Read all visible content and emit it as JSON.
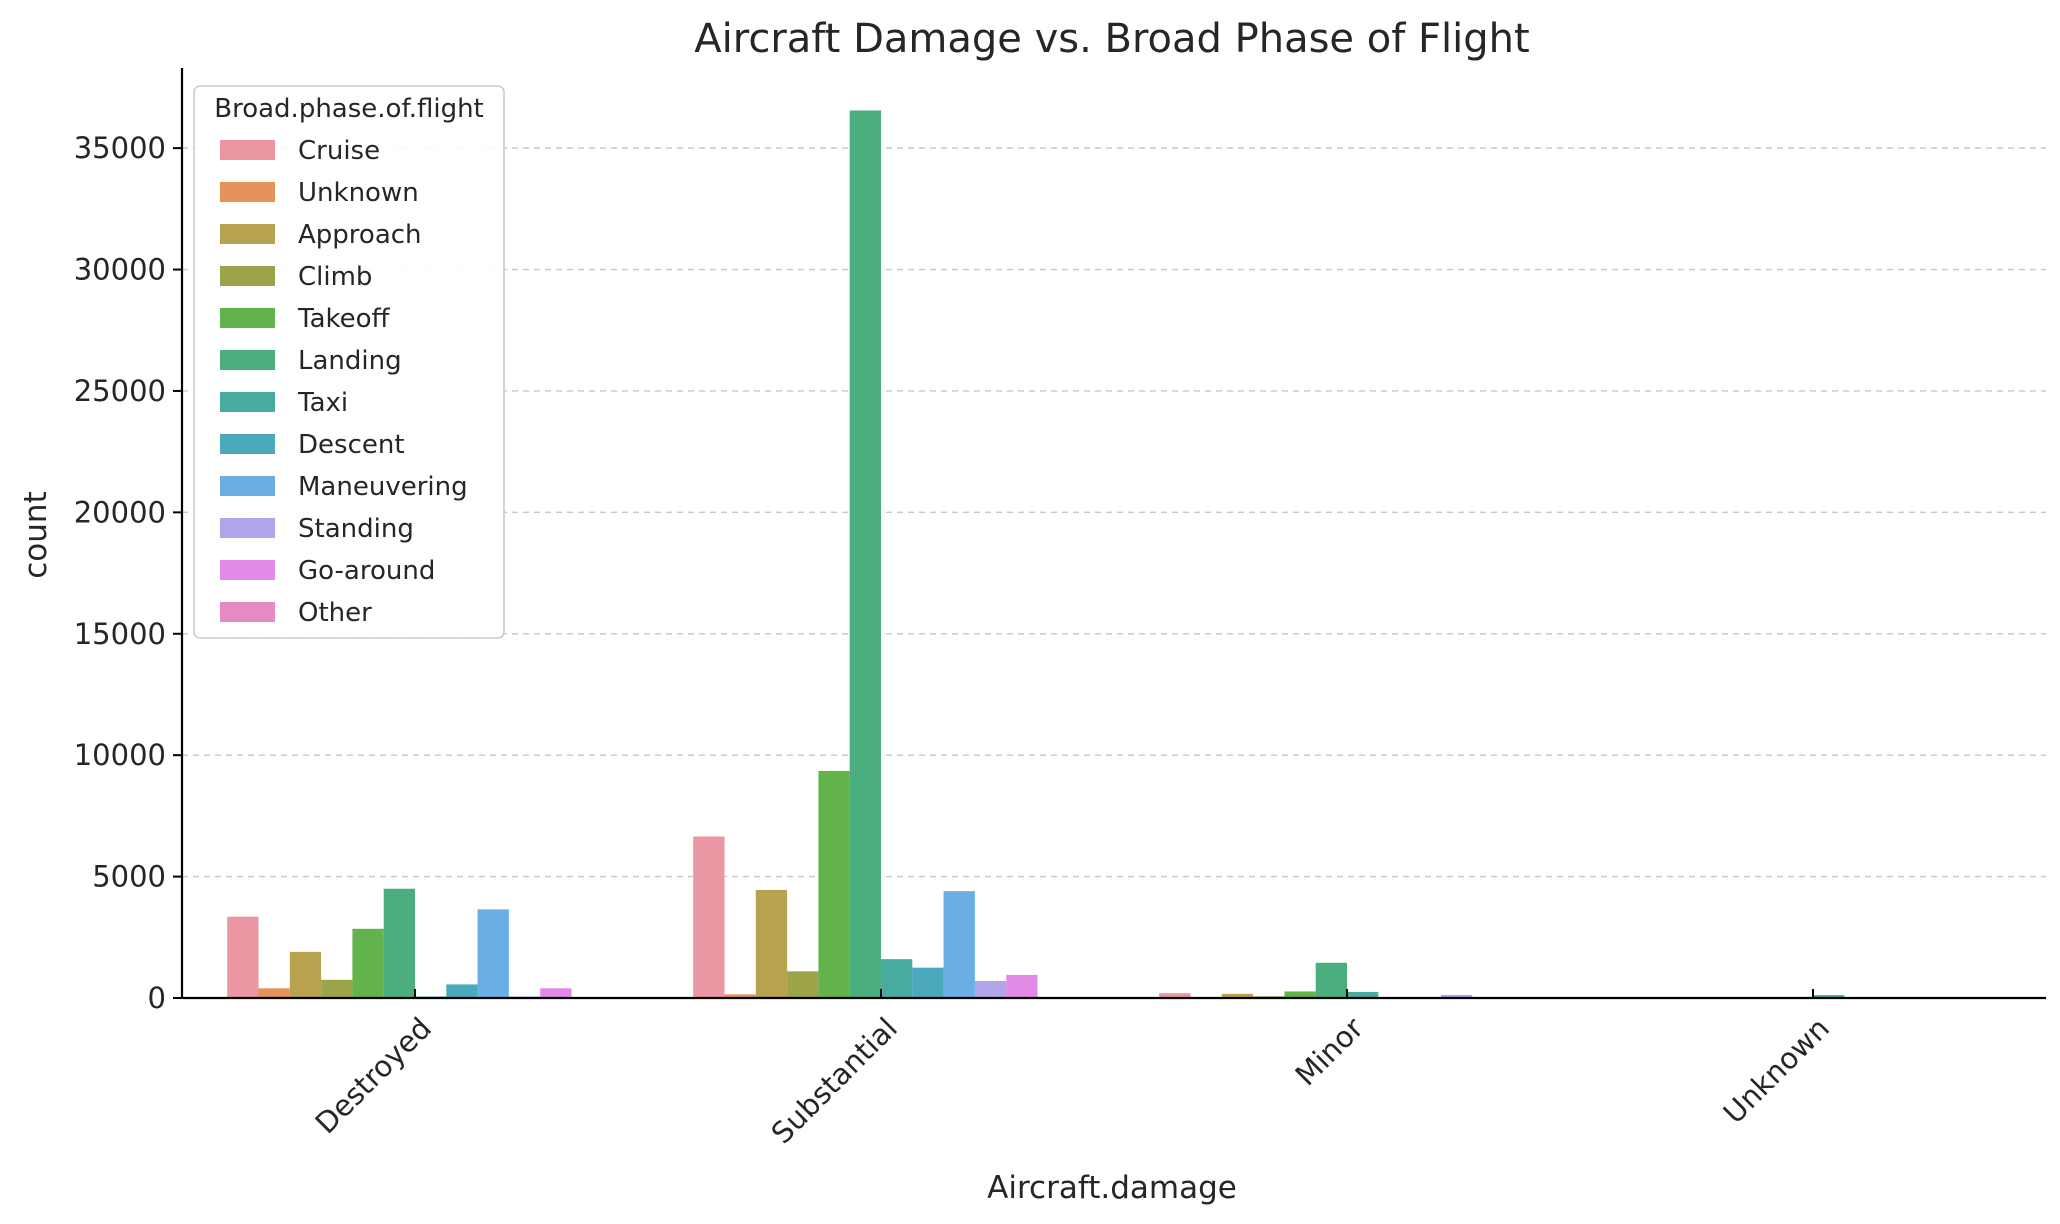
{
  "chart_data": {
    "type": "bar",
    "title": "Aircraft Damage vs. Broad Phase of Flight",
    "xlabel": "Aircraft.damage",
    "ylabel": "count",
    "categories": [
      "Destroyed",
      "Substantial",
      "Minor",
      "Unknown"
    ],
    "y_ticks": [
      "0",
      "5000",
      "10000",
      "15000",
      "20000",
      "25000",
      "30000",
      "35000"
    ],
    "ylim": [
      0,
      38300
    ],
    "grid": "horizontal dashed",
    "legend": {
      "title": "Broad.phase.of.flight",
      "placement": "top-left"
    },
    "series": [
      {
        "name": "Cruise",
        "color": "#ea96a3",
        "values": [
          3350,
          6650,
          200,
          0
        ]
      },
      {
        "name": "Unknown",
        "color": "#e5925b",
        "values": [
          400,
          150,
          0,
          0
        ]
      },
      {
        "name": "Approach",
        "color": "#b9a24d",
        "values": [
          1900,
          4450,
          170,
          0
        ]
      },
      {
        "name": "Climb",
        "color": "#9da348",
        "values": [
          750,
          1100,
          70,
          0
        ]
      },
      {
        "name": "Takeoff",
        "color": "#63b34c",
        "values": [
          2850,
          9350,
          270,
          0
        ]
      },
      {
        "name": "Landing",
        "color": "#4aae7f",
        "values": [
          4500,
          36550,
          1450,
          0
        ]
      },
      {
        "name": "Taxi",
        "color": "#47aba0",
        "values": [
          60,
          1600,
          250,
          120
        ]
      },
      {
        "name": "Descent",
        "color": "#4aa9bb",
        "values": [
          560,
          1250,
          40,
          0
        ]
      },
      {
        "name": "Maneuvering",
        "color": "#6aaee5",
        "values": [
          3650,
          4400,
          40,
          0
        ]
      },
      {
        "name": "Standing",
        "color": "#b3a5e9",
        "values": [
          60,
          700,
          130,
          0
        ]
      },
      {
        "name": "Go-around",
        "color": "#e38ae8",
        "values": [
          400,
          950,
          30,
          0
        ]
      },
      {
        "name": "Other",
        "color": "#e68ac4",
        "values": [
          0,
          0,
          0,
          0
        ]
      }
    ]
  }
}
